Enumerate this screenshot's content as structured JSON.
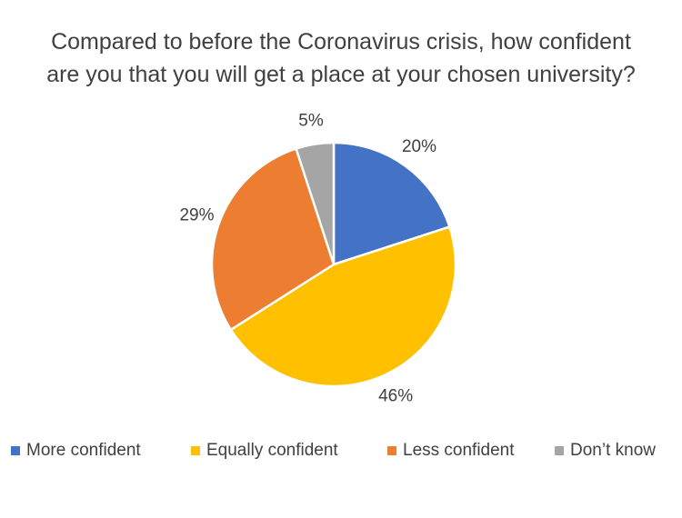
{
  "chart_data": {
    "type": "pie",
    "title_lines": [
      "Compared to before the Coronavirus crisis, how confident",
      "are you that you will get a place at your chosen university?"
    ],
    "slices": [
      {
        "label": "More confident",
        "value": 20,
        "display": "20%",
        "color": "#4472C4"
      },
      {
        "label": "Equally confident",
        "value": 46,
        "display": "46%",
        "color": "#FFC000"
      },
      {
        "label": "Less confident",
        "value": 29,
        "display": "29%",
        "color": "#ED7D31"
      },
      {
        "label": "Don’t know",
        "value": 5,
        "display": "5%",
        "color": "#A5A5A5"
      }
    ],
    "legend_position": "bottom",
    "start": "12 o'clock",
    "direction": "clockwise"
  }
}
